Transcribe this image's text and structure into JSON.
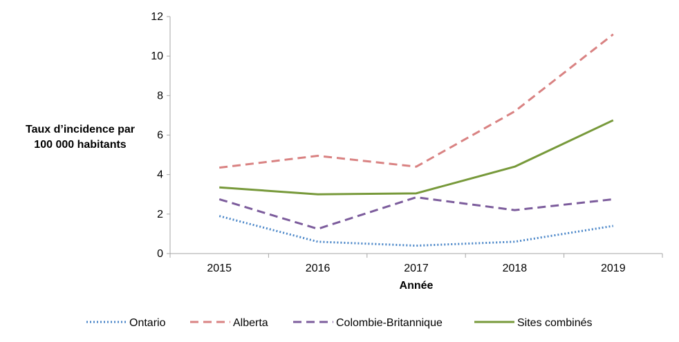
{
  "chart_data": {
    "type": "line",
    "categories": [
      "2015",
      "2016",
      "2017",
      "2018",
      "2019"
    ],
    "ylabel_lines": [
      "Taux d’incidence par",
      "100 000 habitants"
    ],
    "xlabel": "Année",
    "ylim": [
      0,
      12
    ],
    "yticks": [
      "0",
      "2",
      "4",
      "6",
      "8",
      "10",
      "12"
    ],
    "grid": false,
    "legend_position": "bottom",
    "series": [
      {
        "name": "Ontario",
        "values": [
          1.9,
          0.6,
          0.4,
          0.6,
          1.4
        ],
        "color": "#4a86c8",
        "style": "dotted"
      },
      {
        "name": "Alberta",
        "values": [
          4.35,
          4.95,
          4.4,
          7.2,
          11.1
        ],
        "color": "#d98282",
        "style": "dashed"
      },
      {
        "name": "Colombie-Britannique",
        "values": [
          2.75,
          1.25,
          2.85,
          2.2,
          2.75
        ],
        "color": "#7c5c9c",
        "style": "dashed"
      },
      {
        "name": "Sites combinés",
        "values": [
          3.35,
          3.0,
          3.05,
          4.4,
          6.75
        ],
        "color": "#77993a",
        "style": "solid"
      }
    ]
  }
}
